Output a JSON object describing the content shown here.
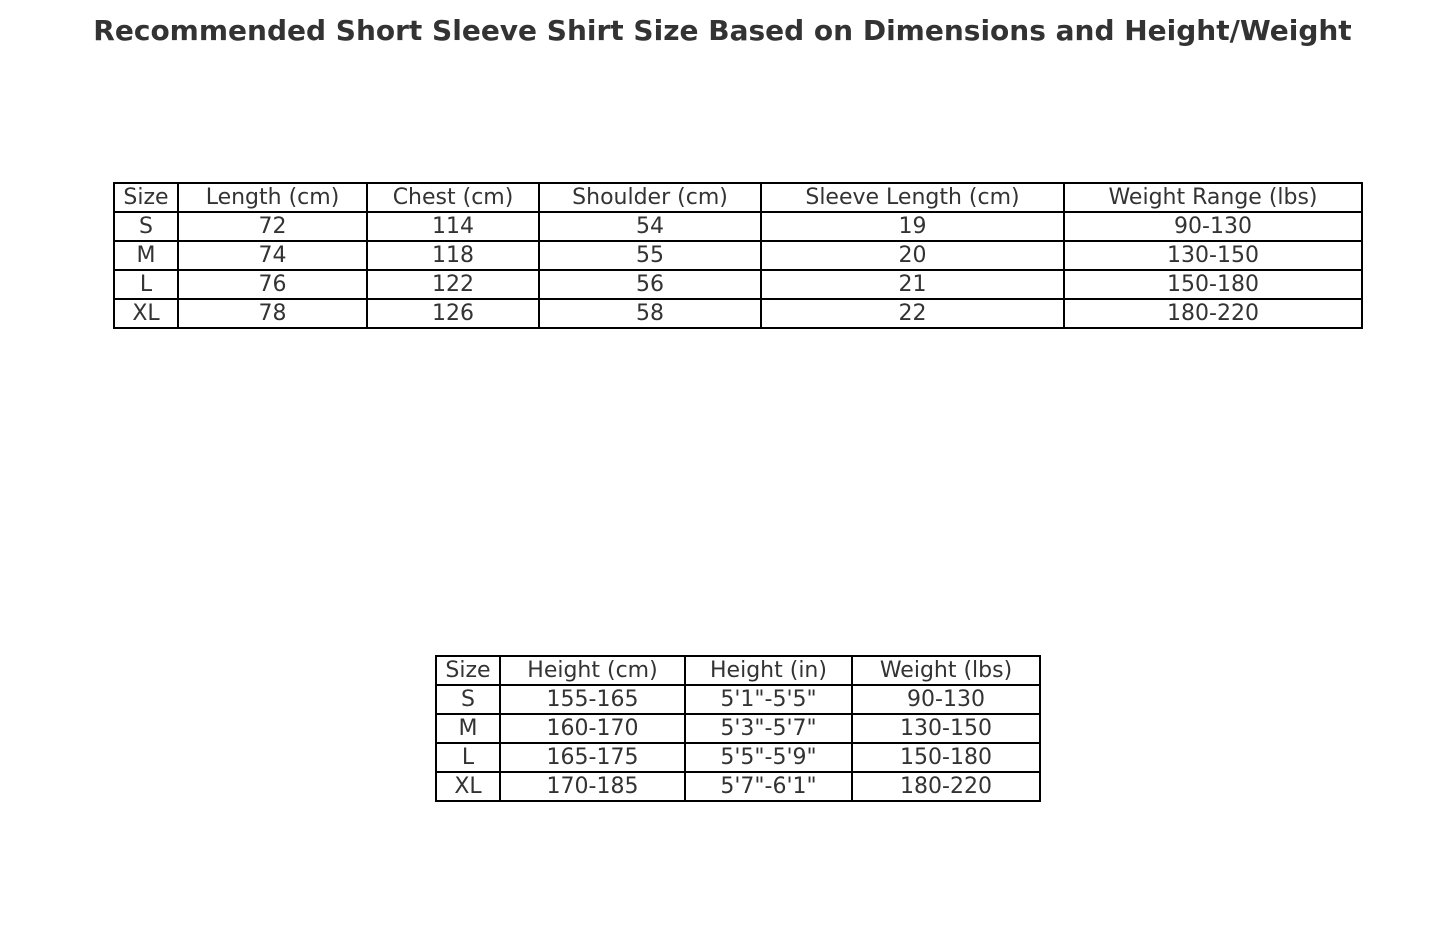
{
  "title": "Recommended Short Sleeve Shirt Size Based on Dimensions and Height/Weight",
  "chart_data": [
    {
      "type": "table",
      "columns": [
        "Size",
        "Length (cm)",
        "Chest (cm)",
        "Shoulder (cm)",
        "Sleeve Length (cm)",
        "Weight Range (lbs)"
      ],
      "rows": [
        [
          "S",
          "72",
          "114",
          "54",
          "19",
          "90-130"
        ],
        [
          "M",
          "74",
          "118",
          "55",
          "20",
          "130-150"
        ],
        [
          "L",
          "76",
          "122",
          "56",
          "21",
          "150-180"
        ],
        [
          "XL",
          "78",
          "126",
          "58",
          "22",
          "180-220"
        ]
      ]
    },
    {
      "type": "table",
      "columns": [
        "Size",
        "Height (cm)",
        "Height (in)",
        "Weight (lbs)"
      ],
      "rows": [
        [
          "S",
          "155-165",
          "5'1\"-5'5\"",
          "90-130"
        ],
        [
          "M",
          "160-170",
          "5'3\"-5'7\"",
          "130-150"
        ],
        [
          "L",
          "165-175",
          "5'5\"-5'9\"",
          "150-180"
        ],
        [
          "XL",
          "170-185",
          "5'7\"-6'1\"",
          "180-220"
        ]
      ]
    }
  ]
}
